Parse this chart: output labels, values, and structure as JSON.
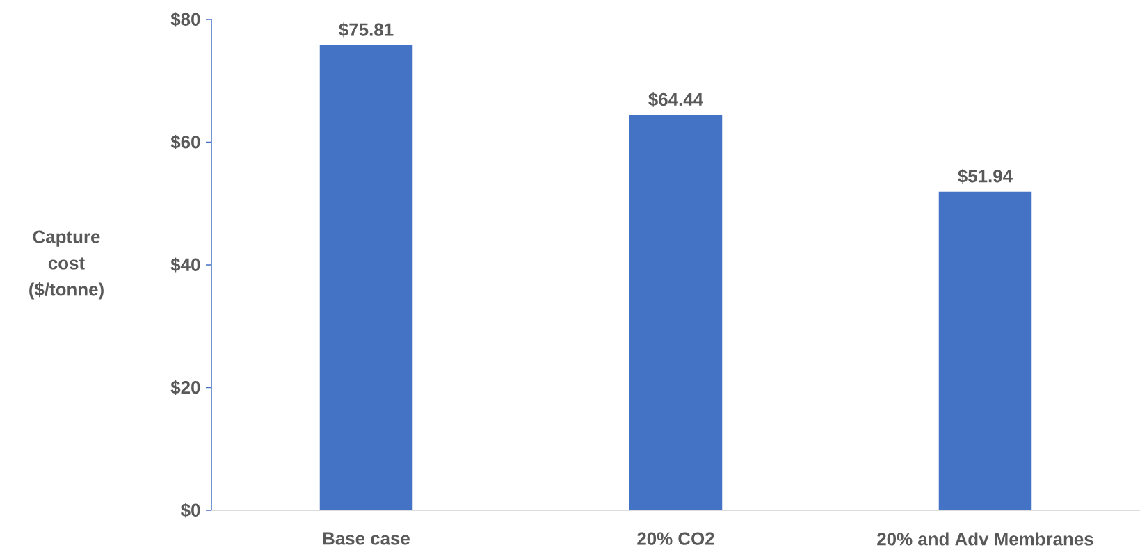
{
  "chart_data": {
    "type": "bar",
    "ylabel": "Capture cost ($/tonne)",
    "categories": [
      "Base case",
      "20% CO2",
      "20% and Adv Membranes"
    ],
    "values": [
      75.81,
      64.44,
      51.94
    ],
    "value_labels": [
      "$75.81",
      "$64.44",
      "$51.94"
    ],
    "color": "#4472c4",
    "ylim": [
      0,
      80
    ],
    "yticks": [
      {
        "value": 0,
        "label": "$0"
      },
      {
        "value": 20,
        "label": "$20"
      },
      {
        "value": 40,
        "label": "$40"
      },
      {
        "value": 60,
        "label": "$60"
      },
      {
        "value": 80,
        "label": "$80"
      }
    ],
    "grid": false
  }
}
